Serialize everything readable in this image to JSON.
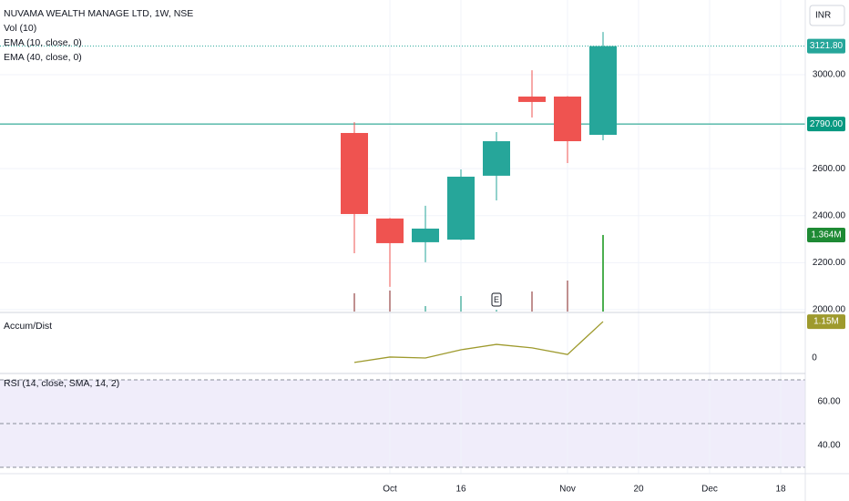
{
  "chart_data": {
    "type": "candlestick",
    "title": "NUVAMA WEALTH MANAGE LTD, 1W, NSE",
    "indicators": [
      "Vol (10)",
      "EMA (10, close, 0)",
      "EMA (40, close, 0)"
    ],
    "currency": "INR",
    "categories": [
      null,
      "Oct",
      null,
      "16",
      null,
      null,
      "Nov",
      null,
      "20",
      null,
      "Dec",
      null,
      "18"
    ],
    "open": [
      2752,
      2388,
      2287,
      2298,
      2570,
      2907,
      2907,
      2744,
      null,
      null,
      null,
      null,
      null
    ],
    "high": [
      2798,
      2390,
      2442,
      2597,
      2756,
      3019,
      2909,
      3182,
      null,
      null,
      null,
      null,
      null
    ],
    "low": [
      2240,
      2097,
      2202,
      2296,
      2465,
      2818,
      2624,
      2721,
      null,
      null,
      null,
      null,
      null
    ],
    "close": [
      2407,
      2283,
      2345,
      2566,
      2717,
      2884,
      2717,
      3121.8,
      null,
      null,
      null,
      null,
      null
    ],
    "value_labels": [
      null,
      null,
      null,
      null,
      null,
      null,
      null,
      "3121.80",
      null,
      null,
      null,
      null,
      null
    ],
    "up_color": "#26a69a",
    "down_color": "#ef5350",
    "ylim": [
      1992,
      3318
    ],
    "yticks": [
      {
        "value": 2000,
        "label": "2000.00"
      },
      {
        "value": 2200,
        "label": "2200.00"
      },
      {
        "value": 2400,
        "label": "2400.00"
      },
      {
        "value": 2600,
        "label": "2600.00"
      },
      {
        "value": 3000,
        "label": "3000.00"
      }
    ],
    "price_line": {
      "value": 2790,
      "label": "2790.00",
      "color": "#089981"
    },
    "event_marker": {
      "index": 4,
      "label": "E"
    },
    "grid": true,
    "volume": {
      "values": [
        0.325,
        0.374,
        0.097,
        0.276,
        0.03,
        0.357,
        0.552,
        1.364
      ],
      "value_labels": [
        null,
        null,
        null,
        null,
        null,
        null,
        null,
        "1.364M"
      ],
      "ylim": [
        0,
        5.55
      ]
    },
    "accum_dist": {
      "title": "Accum/Dist",
      "color": "#9e9a2d",
      "values": [
        -0.14,
        0.03,
        0,
        0.26,
        0.43,
        0.32,
        0.11,
        1.15
      ],
      "value_labels": [
        null,
        null,
        null,
        null,
        null,
        null,
        null,
        "1.15M"
      ],
      "ylim": [
        -0.49,
        1.44
      ],
      "yticks": [
        0
      ]
    },
    "rsi": {
      "title": "RSI (14, close, SMA, 14, 2)",
      "ylim": [
        27.1,
        72.9
      ],
      "bands": [
        70,
        50,
        30
      ],
      "yticks": [
        {
          "value": 60,
          "label": "60.00"
        },
        {
          "value": 40,
          "label": "40.00"
        }
      ]
    }
  }
}
